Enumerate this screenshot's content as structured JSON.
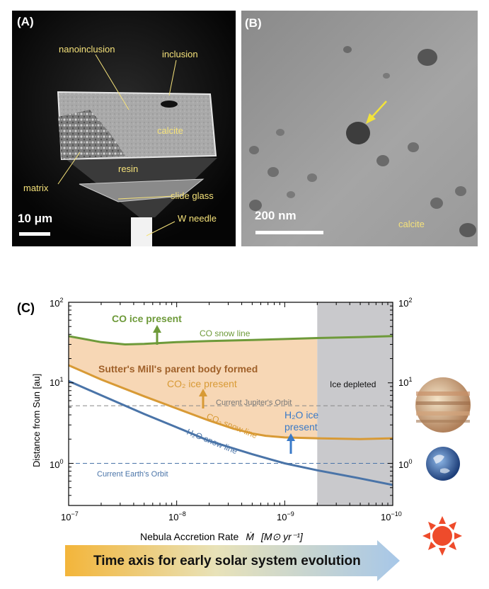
{
  "panelA": {
    "label": "(A)",
    "labels": {
      "nanoinclusion": "nanoinclusion",
      "inclusion": "inclusion",
      "calcite": "calcite",
      "resin": "resin",
      "matrix": "matrix",
      "slide_glass": "slide glass",
      "w_needle": "W needle"
    },
    "scale_bar": "10 μm"
  },
  "panelB": {
    "label": "(B)",
    "scale_bar": "200 nm",
    "calcite": "calcite"
  },
  "panelC": {
    "label": "(C)",
    "time_axis": "Time axis for early solar system evolution",
    "colors": {
      "co": "#6e9a3a",
      "co2": "#d89a35",
      "h2o": "#4a74a8",
      "fill": "#f7d7b5",
      "ice_depleted": "#c9c9cc",
      "sun": "#ee4b2b"
    }
  },
  "chart_data": {
    "type": "line",
    "xlabel": "Nebula Accretion Rate",
    "xlabel_symbol": "Ṁ",
    "xlabel_unit": "[M⊙ yr⁻¹]",
    "ylabel": "Distance from Sun  [au]",
    "x_scale": "log",
    "y_scale": "log",
    "xlim": [
      1e-07,
      1e-10
    ],
    "ylim": [
      0.3,
      100
    ],
    "x_ticks": [
      {
        "base": "10",
        "exp": "−7"
      },
      {
        "base": "10",
        "exp": "−8"
      },
      {
        "base": "10",
        "exp": "−9"
      },
      {
        "base": "10",
        "exp": "−10"
      }
    ],
    "y_ticks": [
      {
        "base": "10",
        "exp": "0"
      },
      {
        "base": "10",
        "exp": "1"
      },
      {
        "base": "10",
        "exp": "2"
      }
    ],
    "series": [
      {
        "name": "CO snow line",
        "key": "co",
        "x": [
          1e-07,
          5e-08,
          3e-08,
          2e-08,
          1e-08,
          5e-09,
          2e-09,
          1e-09,
          5e-10,
          2e-10,
          1e-10
        ],
        "y": [
          38,
          32,
          30,
          30.5,
          32,
          33,
          34,
          35,
          36,
          37,
          38
        ]
      },
      {
        "name": "CO₂ snow line",
        "key": "co2",
        "x": [
          1e-07,
          5e-08,
          2e-08,
          1e-08,
          5e-09,
          3e-09,
          2e-09,
          1.5e-09,
          1e-09,
          5e-10,
          2e-10,
          1e-10
        ],
        "y": [
          16.5,
          11,
          6.8,
          4.8,
          3.4,
          2.7,
          2.35,
          2.2,
          2.1,
          2.05,
          2.0,
          2.05
        ]
      },
      {
        "name": "H₂O snow line",
        "key": "h2o",
        "x": [
          1e-07,
          5e-08,
          2e-08,
          1e-08,
          5e-09,
          2e-09,
          1e-09,
          5e-10,
          2e-10,
          1e-10
        ],
        "y": [
          10.5,
          7.0,
          4.1,
          2.8,
          1.9,
          1.3,
          1.0,
          0.82,
          0.65,
          0.54
        ]
      }
    ],
    "orbits": [
      {
        "name": "Current Jupiter's Orbit",
        "y": 5.2
      },
      {
        "name": "Current Earth's Orbit",
        "y": 1.0
      }
    ],
    "shaded_region": {
      "x_from": 5e-10,
      "x_to": 1e-10,
      "label": "Ice depleted"
    },
    "annotations": {
      "co_present": "CO ice present",
      "co2_present": "CO₂ ice present",
      "h2o_present_1": "H₂O ice",
      "h2o_present_2": "present",
      "parent_body": "Sutter's Mill's parent body formed",
      "co_snow": "CO snow line",
      "co2_snow": "CO₂ snow line",
      "h2o_snow": "H₂O snow line"
    }
  }
}
